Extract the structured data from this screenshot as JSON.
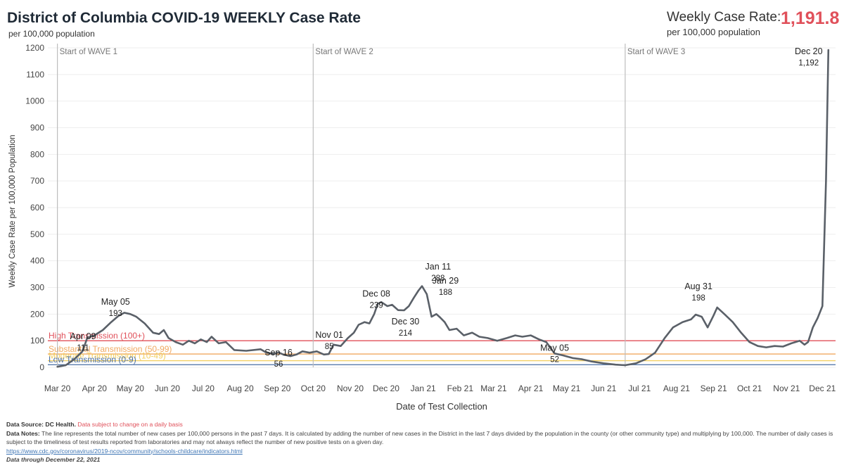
{
  "header": {
    "title": "District of Columbia COVID-19 WEEKLY Case Rate",
    "subtitle": "per 100,000 population"
  },
  "kpi": {
    "label": "Weekly Case Rate:",
    "sublabel": "per 100,000 population",
    "value": "1,191.8"
  },
  "chart_data": {
    "type": "line",
    "xlabel": "Date of Test Collection",
    "ylabel": "Weekly Case Rate per 100,000 Population",
    "ylim": [
      0,
      1200
    ],
    "yticks": [
      0,
      100,
      200,
      300,
      400,
      500,
      600,
      700,
      800,
      900,
      1000,
      1100,
      1200
    ],
    "xlim": [
      "2020-03-07",
      "2021-12-26"
    ],
    "xticks": [
      {
        "date": "2020-03-15",
        "label": "Mar 20"
      },
      {
        "date": "2020-04-15",
        "label": "Apr 20"
      },
      {
        "date": "2020-05-15",
        "label": "May 20"
      },
      {
        "date": "2020-06-15",
        "label": "Jun 20"
      },
      {
        "date": "2020-07-15",
        "label": "Jul 20"
      },
      {
        "date": "2020-08-15",
        "label": "Aug 20"
      },
      {
        "date": "2020-09-15",
        "label": "Sep 20"
      },
      {
        "date": "2020-10-15",
        "label": "Oct 20"
      },
      {
        "date": "2020-11-15",
        "label": "Nov 20"
      },
      {
        "date": "2020-12-15",
        "label": "Dec 20"
      },
      {
        "date": "2021-01-15",
        "label": "Jan 21"
      },
      {
        "date": "2021-02-15",
        "label": "Feb 21"
      },
      {
        "date": "2021-03-15",
        "label": "Mar 21"
      },
      {
        "date": "2021-04-15",
        "label": "Apr 21"
      },
      {
        "date": "2021-05-15",
        "label": "May 21"
      },
      {
        "date": "2021-06-15",
        "label": "Jun 21"
      },
      {
        "date": "2021-07-15",
        "label": "Jul 21"
      },
      {
        "date": "2021-08-15",
        "label": "Aug 21"
      },
      {
        "date": "2021-09-15",
        "label": "Sep 21"
      },
      {
        "date": "2021-10-15",
        "label": "Oct 21"
      },
      {
        "date": "2021-11-15",
        "label": "Nov 21"
      },
      {
        "date": "2021-12-15",
        "label": "Dec 21"
      }
    ],
    "grid": true,
    "thresholds": [
      {
        "value": 100,
        "label": "High Transmission (100+)",
        "color": "#e0505a"
      },
      {
        "value": 50,
        "label": "Substantial Transmission (50-99)",
        "color": "#f0a860"
      },
      {
        "value": 25,
        "label": "Moderate Transmission (10-49)",
        "color": "#f2cf62"
      },
      {
        "value": 10,
        "label": "Low Transmission (0-9)",
        "color": "#4a6fa5"
      }
    ],
    "waves": [
      {
        "date": "2020-03-15",
        "label": "Start of WAVE 1"
      },
      {
        "date": "2020-10-15",
        "label": "Start of WAVE 2"
      },
      {
        "date": "2021-07-03",
        "label": "Start of WAVE 3"
      }
    ],
    "series": [
      {
        "color": "#5a6068",
        "points": [
          [
            "2020-03-15",
            2
          ],
          [
            "2020-03-22",
            8
          ],
          [
            "2020-03-29",
            30
          ],
          [
            "2020-04-05",
            60
          ],
          [
            "2020-04-09",
            111
          ],
          [
            "2020-04-15",
            120
          ],
          [
            "2020-04-22",
            140
          ],
          [
            "2020-04-29",
            170
          ],
          [
            "2020-05-05",
            193
          ],
          [
            "2020-05-10",
            205
          ],
          [
            "2020-05-15",
            200
          ],
          [
            "2020-05-20",
            190
          ],
          [
            "2020-05-27",
            165
          ],
          [
            "2020-06-03",
            130
          ],
          [
            "2020-06-08",
            125
          ],
          [
            "2020-06-12",
            140
          ],
          [
            "2020-06-16",
            110
          ],
          [
            "2020-06-22",
            95
          ],
          [
            "2020-06-28",
            85
          ],
          [
            "2020-07-03",
            100
          ],
          [
            "2020-07-08",
            90
          ],
          [
            "2020-07-13",
            105
          ],
          [
            "2020-07-18",
            95
          ],
          [
            "2020-07-22",
            115
          ],
          [
            "2020-07-28",
            90
          ],
          [
            "2020-08-03",
            95
          ],
          [
            "2020-08-10",
            65
          ],
          [
            "2020-08-20",
            62
          ],
          [
            "2020-09-01",
            68
          ],
          [
            "2020-09-06",
            55
          ],
          [
            "2020-09-12",
            50
          ],
          [
            "2020-09-16",
            56
          ],
          [
            "2020-09-20",
            48
          ],
          [
            "2020-09-26",
            42
          ],
          [
            "2020-10-01",
            48
          ],
          [
            "2020-10-06",
            60
          ],
          [
            "2020-10-12",
            55
          ],
          [
            "2020-10-18",
            60
          ],
          [
            "2020-10-24",
            48
          ],
          [
            "2020-10-28",
            50
          ],
          [
            "2020-11-01",
            85
          ],
          [
            "2020-11-07",
            80
          ],
          [
            "2020-11-13",
            110
          ],
          [
            "2020-11-18",
            130
          ],
          [
            "2020-11-22",
            160
          ],
          [
            "2020-11-27",
            170
          ],
          [
            "2020-12-01",
            165
          ],
          [
            "2020-12-05",
            200
          ],
          [
            "2020-12-08",
            239
          ],
          [
            "2020-12-11",
            245
          ],
          [
            "2020-12-16",
            230
          ],
          [
            "2020-12-20",
            235
          ],
          [
            "2020-12-25",
            215
          ],
          [
            "2020-12-30",
            214
          ],
          [
            "2021-01-03",
            230
          ],
          [
            "2021-01-07",
            260
          ],
          [
            "2021-01-11",
            288
          ],
          [
            "2021-01-14",
            305
          ],
          [
            "2021-01-18",
            275
          ],
          [
            "2021-01-22",
            190
          ],
          [
            "2021-01-26",
            200
          ],
          [
            "2021-01-29",
            188
          ],
          [
            "2021-02-02",
            170
          ],
          [
            "2021-02-06",
            140
          ],
          [
            "2021-02-12",
            145
          ],
          [
            "2021-02-18",
            120
          ],
          [
            "2021-02-25",
            130
          ],
          [
            "2021-03-03",
            115
          ],
          [
            "2021-03-10",
            110
          ],
          [
            "2021-03-18",
            100
          ],
          [
            "2021-03-26",
            110
          ],
          [
            "2021-04-02",
            120
          ],
          [
            "2021-04-08",
            115
          ],
          [
            "2021-04-15",
            120
          ],
          [
            "2021-04-22",
            105
          ],
          [
            "2021-04-28",
            95
          ],
          [
            "2021-05-05",
            52
          ],
          [
            "2021-05-12",
            45
          ],
          [
            "2021-05-20",
            35
          ],
          [
            "2021-05-28",
            30
          ],
          [
            "2021-06-05",
            22
          ],
          [
            "2021-06-15",
            15
          ],
          [
            "2021-06-25",
            10
          ],
          [
            "2021-07-03",
            8
          ],
          [
            "2021-07-12",
            15
          ],
          [
            "2021-07-20",
            30
          ],
          [
            "2021-07-28",
            55
          ],
          [
            "2021-08-05",
            110
          ],
          [
            "2021-08-12",
            150
          ],
          [
            "2021-08-20",
            170
          ],
          [
            "2021-08-27",
            180
          ],
          [
            "2021-08-31",
            198
          ],
          [
            "2021-09-05",
            190
          ],
          [
            "2021-09-10",
            150
          ],
          [
            "2021-09-15",
            195
          ],
          [
            "2021-09-18",
            225
          ],
          [
            "2021-09-24",
            200
          ],
          [
            "2021-10-01",
            170
          ],
          [
            "2021-10-08",
            130
          ],
          [
            "2021-10-15",
            95
          ],
          [
            "2021-10-22",
            80
          ],
          [
            "2021-10-29",
            75
          ],
          [
            "2021-11-05",
            80
          ],
          [
            "2021-11-12",
            78
          ],
          [
            "2021-11-19",
            90
          ],
          [
            "2021-11-26",
            100
          ],
          [
            "2021-11-30",
            85
          ],
          [
            "2021-12-03",
            95
          ],
          [
            "2021-12-07",
            150
          ],
          [
            "2021-12-11",
            185
          ],
          [
            "2021-12-15",
            230
          ],
          [
            "2021-12-18",
            700
          ],
          [
            "2021-12-20",
            1192
          ]
        ]
      }
    ],
    "annotations": [
      {
        "date": "2020-05-05",
        "value": 193,
        "label": "May 05",
        "value_label": "193"
      },
      {
        "date": "2020-04-09",
        "value": 111,
        "label": "Apr 09",
        "value_label": "111"
      },
      {
        "date": "2020-09-16",
        "value": 56,
        "label": "Sep 16",
        "value_label": "56"
      },
      {
        "date": "2020-11-01",
        "value": 85,
        "label": "Nov 01",
        "value_label": "85"
      },
      {
        "date": "2020-12-08",
        "value": 239,
        "label": "Dec 08",
        "value_label": "239"
      },
      {
        "date": "2020-12-30",
        "value": 214,
        "label": "Dec 30",
        "value_label": "214"
      },
      {
        "date": "2021-01-11",
        "value": 288,
        "label": "Jan 11",
        "value_label": "288"
      },
      {
        "date": "2021-01-29",
        "value": 188,
        "label": "Jan 29",
        "value_label": "188"
      },
      {
        "date": "2021-05-05",
        "value": 52,
        "label": "May 05",
        "value_label": "52"
      },
      {
        "date": "2021-08-31",
        "value": 198,
        "label": "Aug 31",
        "value_label": "198"
      },
      {
        "date": "2021-12-20",
        "value": 1192,
        "label": "Dec 20",
        "value_label": "1,192"
      }
    ]
  },
  "footer": {
    "source_label": "Data Source: DC Health.",
    "source_warning": "Data subject to change on a daily basis",
    "notes_label": "Data Notes:",
    "notes_text": "The line represents the total number of new cases per 100,000 persons in the past 7 days. It is calculated by adding the number of new cases in the District in the last 7 days divided by the population in the county (or other community type) and multiplying by 100,000. The number of daily cases is subject to the timeliness of test results reported from laboratories and may not always reflect the number of new positive tests on a given day.",
    "link": "https://www.cdc.gov/coronavirus/2019-ncov/community/schools-childcare/indicators.html",
    "data_through": "Data through December 22, 2021"
  }
}
